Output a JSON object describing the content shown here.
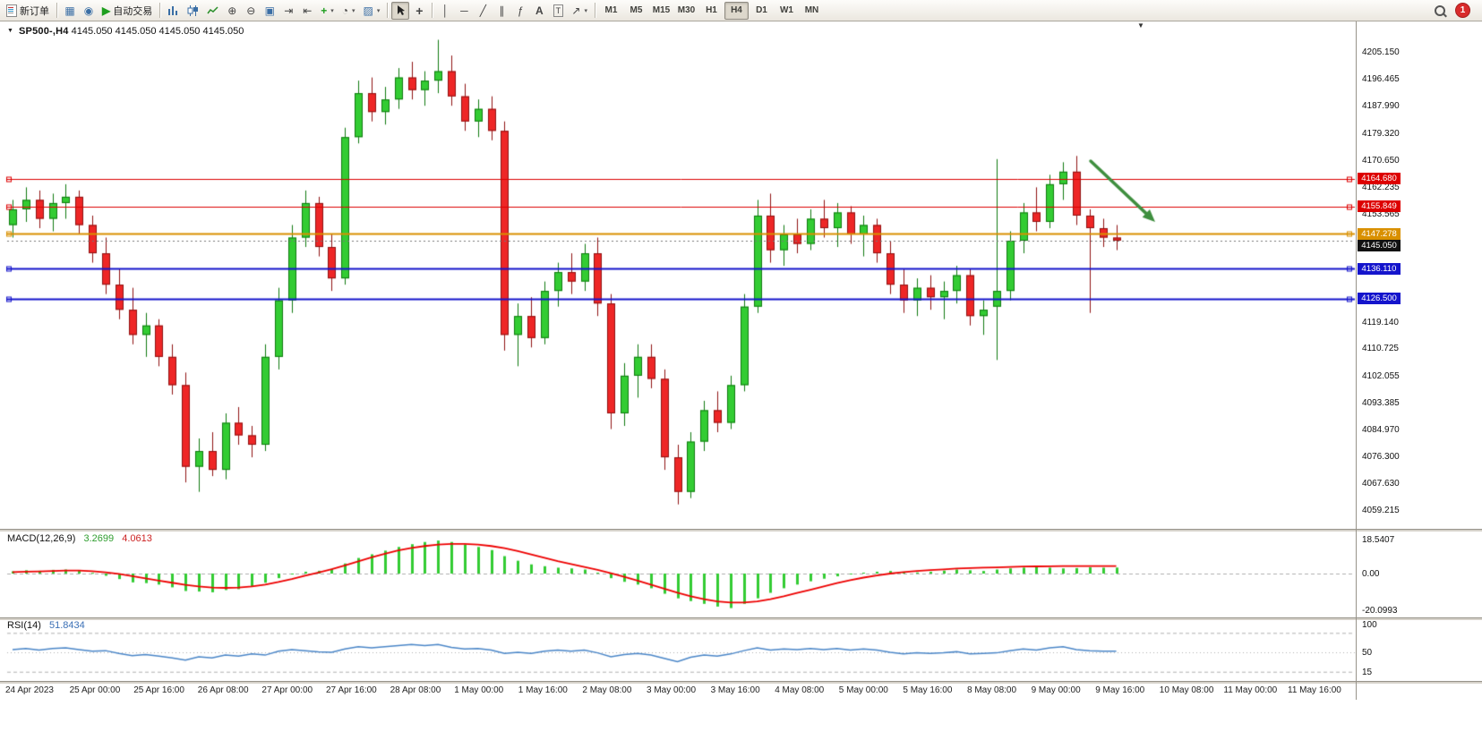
{
  "toolbar": {
    "new_order": "新订单",
    "auto_trading": "自动交易",
    "timeframes": [
      "M1",
      "M5",
      "M15",
      "M30",
      "H1",
      "H4",
      "D1",
      "W1",
      "MN"
    ],
    "active_timeframe": "H4",
    "notification_count": "1",
    "glyphs": {
      "market_watch": "▦",
      "navigator": "◉",
      "play": "▶",
      "zoom_in": "⊕",
      "zoom_out": "⊖",
      "tile": "▣",
      "auto_scroll": "⇥",
      "chart_shift": "⇤",
      "add_indicator": "+",
      "period": "◔",
      "template": "▨",
      "crosshair": "+",
      "vline": "│",
      "hline": "─",
      "trendline": "╱",
      "channel": "∥",
      "fibo": "ƒ",
      "text_tool": "A",
      "label_tool": "T",
      "arrows_tool": "↗",
      "dropdown": "▾",
      "shift_marker": "▼",
      "symbol_dropdown": "▼"
    }
  },
  "chart_header": {
    "symbol_period": "SP500-,H4",
    "ohlc_values": "4145.050 4145.050 4145.050 4145.050"
  },
  "chart_data": {
    "type": "candlestick",
    "symbol": "SP500-",
    "timeframe": "H4",
    "current_price": "4145.050",
    "y_axis_range": [
      4059.215,
      4205.15
    ],
    "y_axis_labels": [
      "4205.150",
      "4196.465",
      "4187.990",
      "4179.320",
      "4170.650",
      "4162.235",
      "4153.565",
      "4119.140",
      "4110.725",
      "4102.055",
      "4093.385",
      "4084.970",
      "4076.300",
      "4067.630",
      "4059.215"
    ],
    "time_labels": [
      "24 Apr 2023",
      "25 Apr 00:00",
      "25 Apr 16:00",
      "26 Apr 08:00",
      "27 Apr 00:00",
      "27 Apr 16:00",
      "28 Apr 08:00",
      "1 May 00:00",
      "1 May 16:00",
      "2 May 08:00",
      "3 May 00:00",
      "3 May 16:00",
      "4 May 08:00",
      "5 May 00:00",
      "5 May 16:00",
      "8 May 08:00",
      "9 May 00:00",
      "9 May 16:00",
      "10 May 08:00",
      "11 May 00:00",
      "11 May 16:00"
    ],
    "price_lines": [
      {
        "label": "4164.680",
        "price": 4164.68,
        "color": "#dd0000",
        "width": 1,
        "kind": "resistance-line"
      },
      {
        "label": "4155.849",
        "price": 4155.849,
        "color": "#dd0000",
        "width": 1,
        "kind": "resistance-line"
      },
      {
        "label": "4147.278",
        "price": 4147.278,
        "color": "#d99000",
        "width": 2,
        "kind": "pivot-line"
      },
      {
        "label": "4145.050",
        "price": 4145.05,
        "color": "#111111",
        "width": 1,
        "kind": "current-price"
      },
      {
        "label": "4136.110",
        "price": 4136.11,
        "color": "#1414cc",
        "width": 2,
        "kind": "support-line"
      },
      {
        "label": "4126.500",
        "price": 4126.5,
        "color": "#1414cc",
        "width": 2,
        "kind": "support-line"
      }
    ],
    "candles": [
      [
        4150,
        4158,
        4146,
        4155
      ],
      [
        4155,
        4162,
        4151,
        4158
      ],
      [
        4158,
        4161,
        4149,
        4152
      ],
      [
        4152,
        4160,
        4148,
        4157
      ],
      [
        4157,
        4163,
        4152,
        4159
      ],
      [
        4159,
        4161,
        4147,
        4150
      ],
      [
        4150,
        4153,
        4138,
        4141
      ],
      [
        4141,
        4146,
        4128,
        4131
      ],
      [
        4131,
        4136,
        4120,
        4123
      ],
      [
        4123,
        4130,
        4112,
        4115
      ],
      [
        4115,
        4122,
        4108,
        4118
      ],
      [
        4118,
        4120,
        4105,
        4108
      ],
      [
        4108,
        4112,
        4096,
        4099
      ],
      [
        4099,
        4103,
        4068,
        4073
      ],
      [
        4073,
        4082,
        4065,
        4078
      ],
      [
        4078,
        4084,
        4070,
        4072
      ],
      [
        4072,
        4090,
        4069,
        4087
      ],
      [
        4087,
        4092,
        4080,
        4083
      ],
      [
        4083,
        4086,
        4076,
        4080
      ],
      [
        4080,
        4112,
        4078,
        4108
      ],
      [
        4108,
        4130,
        4104,
        4126
      ],
      [
        4126,
        4150,
        4122,
        4146
      ],
      [
        4146,
        4161,
        4143,
        4157
      ],
      [
        4157,
        4159,
        4140,
        4143
      ],
      [
        4143,
        4147,
        4129,
        4133
      ],
      [
        4133,
        4181,
        4131,
        4178
      ],
      [
        4178,
        4196,
        4176,
        4192
      ],
      [
        4192,
        4197,
        4183,
        4186
      ],
      [
        4186,
        4194,
        4182,
        4190
      ],
      [
        4190,
        4200,
        4187,
        4197
      ],
      [
        4197,
        4202,
        4190,
        4193
      ],
      [
        4193,
        4199,
        4188,
        4196
      ],
      [
        4196,
        4209,
        4192,
        4199
      ],
      [
        4199,
        4204,
        4188,
        4191
      ],
      [
        4191,
        4195,
        4180,
        4183
      ],
      [
        4183,
        4190,
        4178,
        4187
      ],
      [
        4187,
        4191,
        4177,
        4180
      ],
      [
        4180,
        4183,
        4110,
        4115
      ],
      [
        4115,
        4125,
        4105,
        4121
      ],
      [
        4121,
        4127,
        4111,
        4114
      ],
      [
        4114,
        4132,
        4112,
        4129
      ],
      [
        4129,
        4138,
        4124,
        4135
      ],
      [
        4135,
        4141,
        4128,
        4132
      ],
      [
        4132,
        4144,
        4129,
        4141
      ],
      [
        4141,
        4146,
        4121,
        4125
      ],
      [
        4125,
        4128,
        4085,
        4090
      ],
      [
        4090,
        4106,
        4086,
        4102
      ],
      [
        4102,
        4112,
        4095,
        4108
      ],
      [
        4108,
        4112,
        4098,
        4101
      ],
      [
        4101,
        4104,
        4072,
        4076
      ],
      [
        4076,
        4080,
        4061,
        4065
      ],
      [
        4065,
        4084,
        4063,
        4081
      ],
      [
        4081,
        4094,
        4078,
        4091
      ],
      [
        4091,
        4097,
        4084,
        4087
      ],
      [
        4087,
        4102,
        4085,
        4099
      ],
      [
        4099,
        4128,
        4097,
        4124
      ],
      [
        4124,
        4158,
        4122,
        4153
      ],
      [
        4153,
        4160,
        4138,
        4142
      ],
      [
        4142,
        4150,
        4137,
        4147
      ],
      [
        4147,
        4152,
        4141,
        4144
      ],
      [
        4144,
        4155,
        4142,
        4152
      ],
      [
        4152,
        4158,
        4146,
        4149
      ],
      [
        4149,
        4157,
        4143,
        4154
      ],
      [
        4154,
        4156,
        4144,
        4147
      ],
      [
        4147,
        4153,
        4140,
        4150
      ],
      [
        4150,
        4152,
        4138,
        4141
      ],
      [
        4141,
        4145,
        4128,
        4131
      ],
      [
        4131,
        4136,
        4122,
        4126
      ],
      [
        4126,
        4133,
        4121,
        4130
      ],
      [
        4130,
        4134,
        4123,
        4127
      ],
      [
        4127,
        4132,
        4120,
        4129
      ],
      [
        4129,
        4137,
        4125,
        4134
      ],
      [
        4134,
        4136,
        4118,
        4121
      ],
      [
        4121,
        4126,
        4115,
        4123
      ],
      [
        4124,
        4171,
        4107,
        4129
      ],
      [
        4129,
        4148,
        4126,
        4145
      ],
      [
        4145,
        4157,
        4141,
        4154
      ],
      [
        4154,
        4162,
        4148,
        4151
      ],
      [
        4151,
        4166,
        4149,
        4163
      ],
      [
        4163,
        4170,
        4158,
        4167
      ],
      [
        4167,
        4172,
        4150,
        4153
      ],
      [
        4153,
        4155,
        4122,
        4149
      ],
      [
        4149,
        4152,
        4143,
        4146
      ],
      [
        4146,
        4150,
        4142,
        4145.05
      ]
    ],
    "indicators": [
      {
        "name": "MACD",
        "params": "(12,26,9)",
        "display_values": [
          "3.2699",
          "4.0613"
        ],
        "scale_labels": [
          "18.5407",
          "0.00",
          "-20.0993"
        ],
        "histogram": [
          1.2,
          1.8,
          1.5,
          2.0,
          2.2,
          1.6,
          0.4,
          -1.2,
          -3.0,
          -4.8,
          -5.2,
          -6.0,
          -7.5,
          -9.5,
          -9.8,
          -10.2,
          -9.0,
          -8.5,
          -7.0,
          -5.0,
          -2.5,
          -0.5,
          1.0,
          1.5,
          2.5,
          5.5,
          8.5,
          10.5,
          12.5,
          14.5,
          16.0,
          17.2,
          18.0,
          17.2,
          15.8,
          14.5,
          12.8,
          9.5,
          7.0,
          5.0,
          4.0,
          3.2,
          2.8,
          2.2,
          0.5,
          -2.5,
          -4.5,
          -6.0,
          -8.0,
          -11.0,
          -13.5,
          -15.0,
          -16.5,
          -18.0,
          -18.8,
          -16.5,
          -13.5,
          -10.5,
          -8.0,
          -6.0,
          -4.2,
          -2.8,
          -1.5,
          -0.4,
          0.5,
          1.0,
          1.4,
          1.0,
          0.6,
          1.0,
          1.6,
          2.2,
          1.8,
          1.4,
          2.2,
          2.8,
          3.2,
          3.6,
          3.2,
          2.8,
          3.0,
          3.4,
          3.2,
          3.27
        ],
        "signal": [
          0.8,
          1.0,
          1.2,
          1.4,
          1.6,
          1.6,
          1.3,
          0.7,
          -0.2,
          -1.4,
          -2.6,
          -3.8,
          -5.0,
          -6.2,
          -7.0,
          -7.6,
          -7.8,
          -7.6,
          -7.0,
          -6.0,
          -4.6,
          -3.0,
          -1.2,
          0.6,
          2.4,
          4.4,
          6.6,
          8.8,
          10.8,
          12.6,
          14.0,
          15.0,
          15.8,
          16.2,
          16.2,
          15.8,
          15.0,
          13.8,
          12.2,
          10.4,
          8.6,
          6.8,
          5.2,
          3.6,
          2.0,
          0.2,
          -1.8,
          -3.8,
          -6.0,
          -8.2,
          -10.4,
          -12.4,
          -14.0,
          -15.2,
          -15.8,
          -15.8,
          -15.2,
          -14.0,
          -12.4,
          -10.6,
          -8.8,
          -7.0,
          -5.2,
          -3.6,
          -2.2,
          -1.0,
          0.0,
          0.8,
          1.4,
          1.9,
          2.3,
          2.7,
          3.0,
          3.2,
          3.4,
          3.6,
          3.8,
          3.9,
          4.0,
          4.1,
          4.1,
          4.1,
          4.08,
          4.06
        ]
      },
      {
        "name": "RSI",
        "params": "(14)",
        "display_values": [
          "51.8434"
        ],
        "scale_labels": [
          "100",
          "50",
          "15"
        ],
        "levels": [
          85,
          50,
          15
        ],
        "values": [
          55,
          57,
          54,
          57,
          58,
          55,
          52,
          53,
          48,
          44,
          46,
          43,
          40,
          36,
          42,
          40,
          45,
          43,
          47,
          45,
          52,
          55,
          53,
          51,
          50,
          56,
          60,
          58,
          60,
          62,
          64,
          62,
          64,
          59,
          56,
          57,
          54,
          48,
          50,
          48,
          52,
          54,
          52,
          54,
          49,
          42,
          46,
          48,
          45,
          39,
          33,
          41,
          45,
          43,
          47,
          53,
          58,
          54,
          56,
          55,
          57,
          55,
          57,
          54,
          56,
          54,
          50,
          47,
          49,
          48,
          49,
          51,
          47,
          48,
          49,
          53,
          56,
          54,
          58,
          60,
          55,
          53,
          52,
          51.84
        ]
      }
    ],
    "annotation": {
      "type": "arrow",
      "color": "#3f8f3f",
      "from": [
        1218,
        156
      ],
      "to": [
        1290,
        224
      ]
    }
  },
  "colors": {
    "up": "#33cc33",
    "up_border": "#0f7a0f",
    "down": "#ee2626",
    "down_border": "#8f1212",
    "macd_hist": "#33cc33",
    "macd_signal": "#ee0000",
    "rsi_line": "#4a86c8",
    "level_dash": "#b0b0b0",
    "current_dash": "#777777"
  }
}
